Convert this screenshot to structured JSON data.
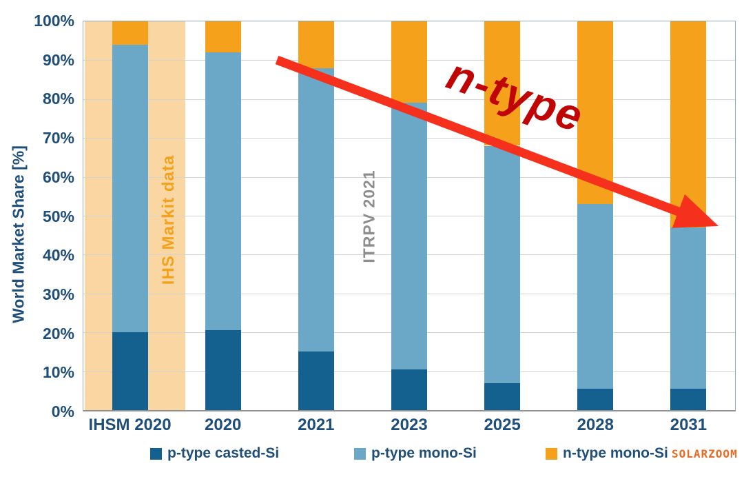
{
  "axis_text_color": "#1F4E79",
  "watermark": {
    "text": "SOLARZOOM",
    "color": "#E96A20"
  },
  "chart_data": {
    "type": "bar",
    "stacked": true,
    "title": "",
    "xlabel": "",
    "ylabel": "World Market Share [%]",
    "ylim": [
      0,
      100
    ],
    "ytick_step": 10,
    "yticks": [
      "0%",
      "10%",
      "20%",
      "30%",
      "40%",
      "50%",
      "60%",
      "70%",
      "80%",
      "90%",
      "100%"
    ],
    "grid": true,
    "legend_position": "bottom",
    "categories": [
      "IHSM 2020",
      "2020",
      "2021",
      "2023",
      "2025",
      "2028",
      "2031"
    ],
    "series": [
      {
        "name": "p-type casted-Si",
        "color": "#14608E",
        "values": [
          20,
          20.5,
          15,
          10.5,
          7,
          5.5,
          5.5
        ]
      },
      {
        "name": "p-type mono-Si",
        "color": "#6BA8C7",
        "values": [
          74,
          71.5,
          73,
          68.5,
          61,
          47.5,
          41.5
        ]
      },
      {
        "name": "n-type mono-Si",
        "color": "#F5A11C",
        "values": [
          6,
          8,
          12,
          21,
          32,
          47,
          53
        ]
      }
    ],
    "highlight_band": {
      "category": "IHSM 2020",
      "label": "IHS Markit data",
      "band_color": "#F9D6A2",
      "label_color": "#F3A21D"
    },
    "source_note": {
      "text": "ITRPV 2021",
      "color": "#8D8D8D"
    },
    "trend_arrow": {
      "label": "n-type",
      "label_color": "#C00404",
      "arrow_color": "#F5301C",
      "direction": "down-right",
      "meaning": "n-type share grows from ~6% (2020) to ~53% (2031)"
    }
  }
}
